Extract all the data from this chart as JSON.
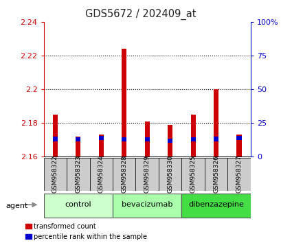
{
  "title": "GDS5672 / 202409_at",
  "samples": [
    "GSM958322",
    "GSM958323",
    "GSM958324",
    "GSM958328",
    "GSM958329",
    "GSM958330",
    "GSM958325",
    "GSM958326",
    "GSM958327"
  ],
  "red_values": [
    2.185,
    2.172,
    2.173,
    2.224,
    2.181,
    2.179,
    2.185,
    2.2,
    2.173
  ],
  "blue_values": [
    2.1705,
    2.1702,
    2.171,
    2.1703,
    2.1704,
    2.1695,
    2.1703,
    2.1705,
    2.171
  ],
  "base": 2.16,
  "ylim_left": [
    2.16,
    2.24
  ],
  "ylim_right": [
    0,
    100
  ],
  "yticks_left": [
    2.16,
    2.18,
    2.2,
    2.22,
    2.24
  ],
  "ytick_labels_left": [
    "2.16",
    "2.18",
    "2.2",
    "2.22",
    "2.24"
  ],
  "yticks_right": [
    0,
    25,
    50,
    75,
    100
  ],
  "ytick_labels_right": [
    "0",
    "25",
    "50",
    "75",
    "100%"
  ],
  "group_configs": [
    {
      "label": "control",
      "indices": [
        0,
        1,
        2
      ],
      "color": "#ccffcc"
    },
    {
      "label": "bevacizumab",
      "indices": [
        3,
        4,
        5
      ],
      "color": "#aaffaa"
    },
    {
      "label": "dibenzazepine",
      "indices": [
        6,
        7,
        8
      ],
      "color": "#44dd44"
    }
  ],
  "red_color": "#cc0000",
  "blue_color": "#0000cc",
  "bar_bg_color": "#cccccc",
  "left_tick_color": "#cc0000",
  "right_tick_color": "#0000cc",
  "dotted_lines": [
    2.18,
    2.2,
    2.22
  ]
}
